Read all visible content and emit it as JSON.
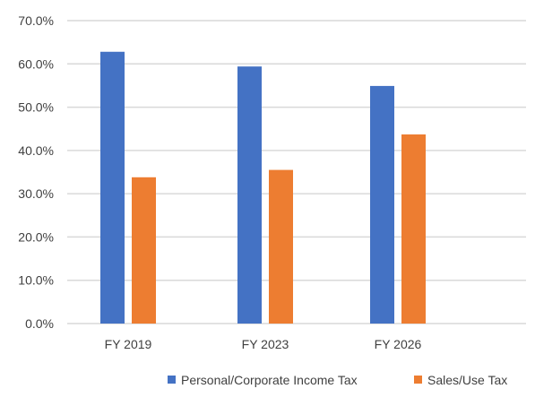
{
  "chart_data": {
    "type": "bar",
    "title": "",
    "xlabel": "",
    "ylabel": "",
    "categories": [
      "FY 2019",
      "FY 2023",
      "FY 2026"
    ],
    "series": [
      {
        "name": "Personal/Corporate Income Tax",
        "values": [
          62.8,
          59.4,
          54.9
        ],
        "color": "#4472C4"
      },
      {
        "name": "Sales/Use Tax",
        "values": [
          33.8,
          35.5,
          43.7
        ],
        "color": "#ED7D31"
      }
    ],
    "ylim": [
      0,
      70
    ],
    "yticks": [
      0,
      10,
      20,
      30,
      40,
      50,
      60,
      70
    ],
    "ytick_labels": [
      "0.0%",
      "10.0%",
      "20.0%",
      "30.0%",
      "40.0%",
      "50.0%",
      "60.0%",
      "70.0%"
    ],
    "grid": true,
    "legend_position": "bottom-right",
    "gridline_color": "#d9d9d9"
  }
}
